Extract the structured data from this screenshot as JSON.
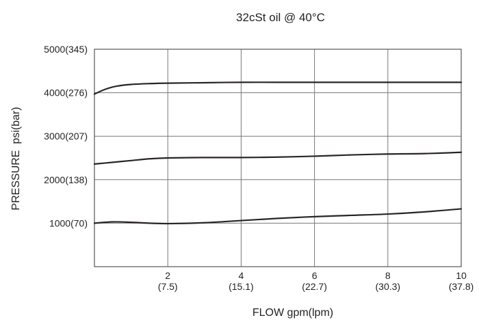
{
  "chart_data": {
    "type": "line",
    "title": "32cSt oil @ 40°C",
    "xlabel": "FLOW gpm(lpm)",
    "ylabel": "PRESSURE  psi(bar)",
    "xlim": [
      0,
      10
    ],
    "ylim": [
      0,
      5000
    ],
    "grid": true,
    "x_ticks": [
      {
        "value": 2,
        "label": "2",
        "sublabel": "(7.5)"
      },
      {
        "value": 4,
        "label": "4",
        "sublabel": "(15.1)"
      },
      {
        "value": 6,
        "label": "6",
        "sublabel": "(22.7)"
      },
      {
        "value": 8,
        "label": "8",
        "sublabel": "(30.3)"
      },
      {
        "value": 10,
        "label": "10",
        "sublabel": "(37.8)"
      }
    ],
    "y_ticks": [
      {
        "value": 1000,
        "label": "1000(70)"
      },
      {
        "value": 2000,
        "label": "2000(138)"
      },
      {
        "value": 3000,
        "label": "3000(207)"
      },
      {
        "value": 4000,
        "label": "4000(276)"
      },
      {
        "value": 5000,
        "label": "5000(345)"
      }
    ],
    "series": [
      {
        "x": [
          0,
          0.3,
          0.6,
          1,
          1.5,
          2,
          3,
          4,
          5,
          6,
          7,
          8,
          9,
          10
        ],
        "y": [
          3970,
          4080,
          4150,
          4190,
          4210,
          4220,
          4230,
          4240,
          4240,
          4240,
          4240,
          4240,
          4240,
          4240
        ],
        "color": "#2a2522"
      },
      {
        "x": [
          0,
          0.5,
          1,
          1.5,
          2,
          3,
          4,
          5,
          6,
          7,
          8,
          9,
          10
        ],
        "y": [
          2360,
          2400,
          2440,
          2480,
          2500,
          2510,
          2510,
          2520,
          2540,
          2570,
          2590,
          2600,
          2630
        ],
        "color": "#2a2522"
      },
      {
        "x": [
          0,
          0.5,
          1,
          1.5,
          2,
          3,
          4,
          5,
          6,
          7,
          8,
          9,
          10
        ],
        "y": [
          1000,
          1030,
          1020,
          1000,
          990,
          1010,
          1060,
          1110,
          1150,
          1180,
          1210,
          1260,
          1330
        ],
        "color": "#2a2522"
      }
    ]
  }
}
